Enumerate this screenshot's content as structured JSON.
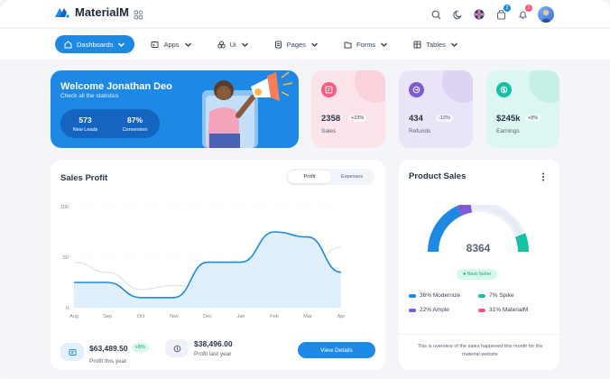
{
  "app": {
    "name": "MaterialM"
  },
  "topbar": {
    "icons": [
      "search-icon",
      "moon-icon",
      "uk-flag-icon",
      "cart-icon",
      "bell-icon"
    ],
    "cart_badge": "2",
    "bell_badge": "1"
  },
  "nav": {
    "items": [
      {
        "label": "Dashboards",
        "icon": "home-icon"
      },
      {
        "label": "Apps",
        "icon": "apps-icon"
      },
      {
        "label": "Ui",
        "icon": "ui-icon"
      },
      {
        "label": "Pages",
        "icon": "pages-icon"
      },
      {
        "label": "Forms",
        "icon": "forms-icon"
      },
      {
        "label": "Tables",
        "icon": "tables-icon"
      }
    ]
  },
  "welcome": {
    "title": "Welcome Jonathan Deo",
    "subtitle": "Check all the statistics",
    "stats": [
      {
        "value": "573",
        "label": "New Leads"
      },
      {
        "value": "87%",
        "label": "Conversion"
      }
    ]
  },
  "mini_cards": [
    {
      "value": "2358",
      "pct": "+23%",
      "label": "Sales",
      "bg": "#fde4ea",
      "accent": "#fa5a7d"
    },
    {
      "value": "434",
      "pct": "-12%",
      "label": "Refunds",
      "bg": "#e9e4f7",
      "accent": "#7c5cd6"
    },
    {
      "value": "$245k",
      "pct": "+8%",
      "label": "Earnings",
      "bg": "#dcf7f1",
      "accent": "#13c2a3"
    }
  ],
  "sales_profit": {
    "title": "Sales Profit",
    "tabs": [
      "Profit",
      "Expenses"
    ],
    "footer": [
      {
        "amount": "$63,489.50",
        "chip": "+8%",
        "caption": "Profit this year"
      },
      {
        "amount": "$38,496.00",
        "caption": "Profit last year"
      }
    ],
    "button": "View Details"
  },
  "chart_data": {
    "type": "area",
    "categories": [
      "Aug",
      "Sep",
      "Oct",
      "Nov",
      "Dec",
      "Jan",
      "Feb",
      "Mar",
      "Apr"
    ],
    "y_ticks": [
      "100",
      "50",
      "0"
    ],
    "ylim": [
      0,
      100
    ],
    "series": [
      {
        "values": [
          25,
          25,
          10,
          10,
          45,
          45,
          75,
          70,
          35
        ],
        "color": "#1e88e5",
        "fill": "#d9ecfb"
      },
      {
        "values": [
          45,
          35,
          18,
          22,
          20,
          20,
          35,
          40,
          60
        ],
        "color": "#dfe3e8"
      }
    ],
    "grid": true
  },
  "product_sales": {
    "title": "Product Sales",
    "total": "8364",
    "badge": "Best Seller",
    "legend": [
      {
        "label": "36% Modernize",
        "color": "#1e88e5"
      },
      {
        "label": "7% Spike",
        "color": "#13c2a3"
      },
      {
        "label": "22% Ample",
        "color": "#7c5cd6"
      },
      {
        "label": "31% MaterialM",
        "color": "#fa5a7d"
      }
    ],
    "note": "This is overview of the sales happened this month for the material website"
  }
}
